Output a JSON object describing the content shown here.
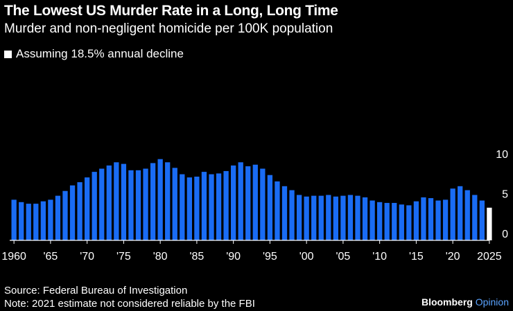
{
  "header": {
    "title": "The Lowest US Murder Rate in a Long, Long Time",
    "subtitle": "Murder and non-negligent homicide per 100K population"
  },
  "legend": {
    "label": "Assuming 18.5% annual decline"
  },
  "footer": {
    "source": "Source: Federal Bureau of Investigation",
    "note": "Note: 2021 estimate not considered reliable by the FBI"
  },
  "brand": {
    "name": "Bloomberg",
    "suffix": "Opinion"
  },
  "colors": {
    "bar": "#1a6cf4",
    "projection": "#ffffff",
    "background": "#000000"
  },
  "chart_data": {
    "type": "bar",
    "title": "The Lowest US Murder Rate in a Long, Long Time",
    "ylabel": "Murder and non-negligent homicide per 100K population",
    "ylim": [
      0,
      10
    ],
    "yticks": [
      0,
      5,
      10
    ],
    "xtick_labels": [
      {
        "year": 1960,
        "label": "1960"
      },
      {
        "year": 1965,
        "label": "'65"
      },
      {
        "year": 1970,
        "label": "'70"
      },
      {
        "year": 1975,
        "label": "'75"
      },
      {
        "year": 1980,
        "label": "'80"
      },
      {
        "year": 1985,
        "label": "'85"
      },
      {
        "year": 1990,
        "label": "'90"
      },
      {
        "year": 1995,
        "label": "'95"
      },
      {
        "year": 2000,
        "label": "'00"
      },
      {
        "year": 2005,
        "label": "'05"
      },
      {
        "year": 2010,
        "label": "'10"
      },
      {
        "year": 2015,
        "label": "'15"
      },
      {
        "year": 2020,
        "label": "'20"
      },
      {
        "year": 2025,
        "label": "2025"
      }
    ],
    "series": [
      {
        "name": "Murder rate",
        "years": [
          1960,
          1961,
          1962,
          1963,
          1964,
          1965,
          1966,
          1967,
          1968,
          1969,
          1970,
          1971,
          1972,
          1973,
          1974,
          1975,
          1976,
          1977,
          1978,
          1979,
          1980,
          1981,
          1982,
          1983,
          1984,
          1985,
          1986,
          1987,
          1988,
          1989,
          1990,
          1991,
          1992,
          1993,
          1994,
          1995,
          1996,
          1997,
          1998,
          1999,
          2000,
          2001,
          2002,
          2003,
          2004,
          2005,
          2006,
          2007,
          2008,
          2009,
          2010,
          2011,
          2012,
          2013,
          2014,
          2015,
          2016,
          2017,
          2018,
          2019,
          2020,
          2021,
          2022,
          2023,
          2024
        ],
        "values": [
          5.1,
          4.8,
          4.6,
          4.6,
          4.9,
          5.1,
          5.6,
          6.2,
          6.9,
          7.3,
          7.9,
          8.6,
          9.0,
          9.4,
          9.8,
          9.6,
          8.8,
          8.8,
          9.0,
          9.7,
          10.2,
          9.8,
          9.1,
          8.3,
          7.9,
          8.0,
          8.6,
          8.3,
          8.4,
          8.7,
          9.4,
          9.8,
          9.3,
          9.5,
          9.0,
          8.2,
          7.4,
          6.8,
          6.3,
          5.7,
          5.5,
          5.6,
          5.6,
          5.7,
          5.5,
          5.6,
          5.7,
          5.6,
          5.4,
          5.0,
          4.8,
          4.7,
          4.7,
          4.5,
          4.4,
          4.9,
          5.4,
          5.3,
          5.0,
          5.1,
          6.5,
          6.8,
          6.3,
          5.7,
          5.0
        ]
      },
      {
        "name": "Assuming 18.5% annual decline",
        "years": [
          2025
        ],
        "values": [
          4.1
        ]
      }
    ]
  }
}
